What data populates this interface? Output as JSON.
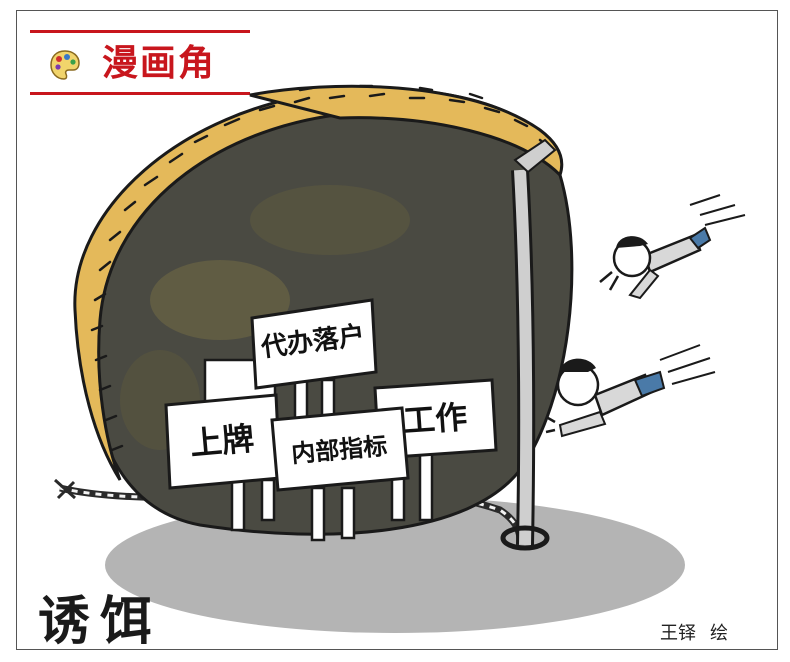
{
  "column": {
    "title": "漫画角",
    "badge_icon": "palette-icon"
  },
  "cartoon": {
    "signs": {
      "hukou": "代办落户",
      "plate": "上牌",
      "quota": "内部指标",
      "job": "工作"
    }
  },
  "caption": "诱饵",
  "credit": {
    "author": "王铎",
    "suffix": "绘"
  },
  "colors": {
    "accent": "#c8161d",
    "basket": "#e4b95a",
    "basket_shadow": "#4a4a42",
    "ground": "#b4b4b4"
  }
}
